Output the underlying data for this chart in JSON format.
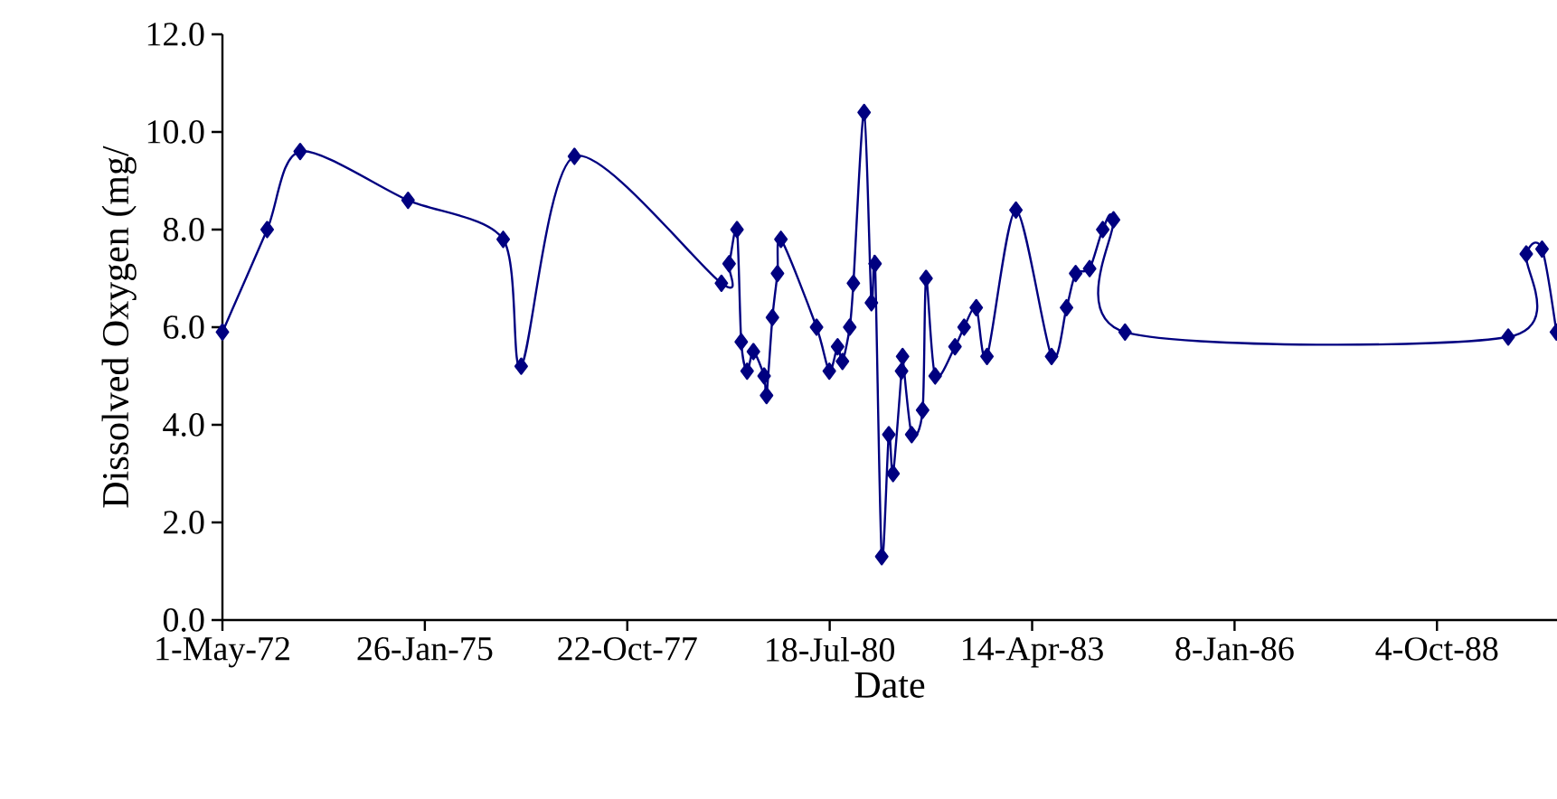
{
  "chart_data": {
    "type": "line",
    "xlabel": "Date",
    "ylabel": "Dissolved Oxygen (mg/",
    "x": [
      "1972-05-01",
      "1972-12-08",
      "1973-05-20",
      "1974-11-04",
      "1976-02-17",
      "1976-05-16",
      "1977-02-03",
      "1979-01-30",
      "1979-03-09",
      "1979-04-17",
      "1979-05-08",
      "1979-06-06",
      "1979-07-07",
      "1979-08-29",
      "1979-09-10",
      "1979-10-09",
      "1979-11-03",
      "1979-11-20",
      "1980-05-14",
      "1980-07-16",
      "1980-08-26",
      "1980-09-19",
      "1980-10-25",
      "1980-11-12",
      "1981-01-04",
      "1981-02-09",
      "1981-02-27",
      "1981-04-01",
      "1981-05-06",
      "1981-05-27",
      "1981-07-08",
      "1981-07-13",
      "1981-08-27",
      "1981-10-20",
      "1981-11-06",
      "1981-12-21",
      "1982-03-29",
      "1982-05-13",
      "1982-07-12",
      "1982-09-03",
      "1983-01-24",
      "1983-07-19",
      "1983-10-01",
      "1983-11-15",
      "1984-01-23",
      "1984-03-28",
      "1984-05-20",
      "1984-07-16",
      "1989-09-21",
      "1989-12-19",
      "1990-03-07",
      "1990-05-17"
    ],
    "values": [
      5.9,
      8.0,
      9.6,
      8.6,
      7.8,
      5.2,
      9.5,
      6.9,
      7.3,
      8.0,
      5.7,
      5.1,
      5.5,
      5.0,
      4.6,
      6.2,
      7.1,
      7.8,
      6.0,
      5.1,
      5.6,
      5.3,
      6.0,
      6.9,
      10.4,
      6.5,
      7.3,
      1.3,
      3.8,
      3.0,
      5.1,
      5.4,
      3.8,
      4.3,
      7.0,
      5.0,
      5.6,
      6.0,
      6.4,
      5.4,
      8.4,
      5.4,
      6.4,
      7.1,
      7.2,
      8.0,
      8.2,
      5.9,
      5.8,
      7.5,
      7.6,
      5.9
    ],
    "color": "#000080",
    "marker": "diamond",
    "line_style": "solid",
    "grid": false,
    "xlim": [
      "1972-05-01",
      "1990-05-20"
    ],
    "xticks": [
      {
        "value": "1972-05-01",
        "label": "1-May-72"
      },
      {
        "value": "1975-01-26",
        "label": "26-Jan-75"
      },
      {
        "value": "1977-10-22",
        "label": "22-Oct-77"
      },
      {
        "value": "1980-07-18",
        "label": "18-Jul-80"
      },
      {
        "value": "1983-04-14",
        "label": "14-Apr-83"
      },
      {
        "value": "1986-01-08",
        "label": "8-Jan-86"
      },
      {
        "value": "1988-10-04",
        "label": "4-Oct-88"
      }
    ],
    "ylim": [
      0,
      12
    ],
    "yticks": [
      {
        "value": 0,
        "label": "0.0"
      },
      {
        "value": 2,
        "label": "2.0"
      },
      {
        "value": 4,
        "label": "4.0"
      },
      {
        "value": 6,
        "label": "6.0"
      },
      {
        "value": 8,
        "label": "8.0"
      },
      {
        "value": 10,
        "label": "10.0"
      },
      {
        "value": 12,
        "label": "12.0"
      }
    ]
  }
}
